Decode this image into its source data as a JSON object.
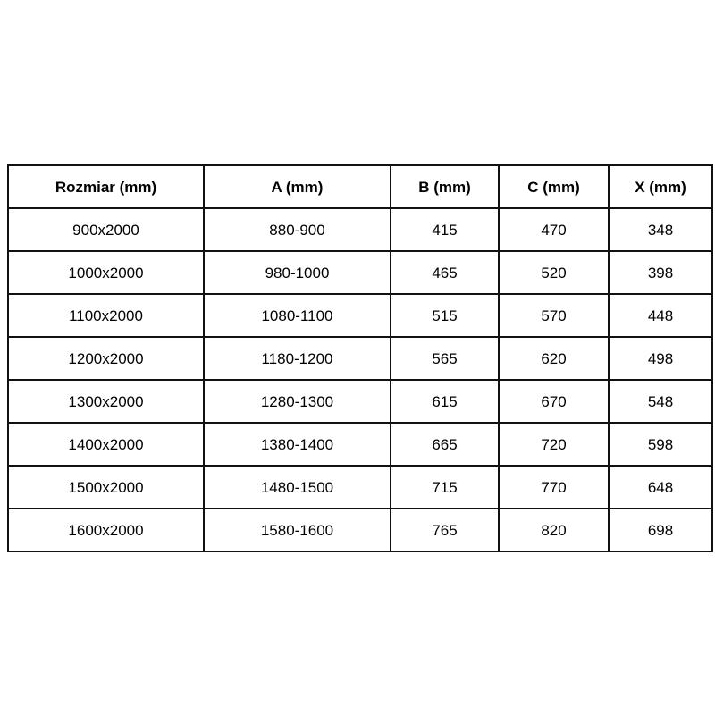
{
  "chart_data": {
    "type": "table",
    "title": "",
    "columns": [
      "Rozmiar (mm)",
      "A (mm)",
      "B (mm)",
      "C (mm)",
      "X (mm)"
    ],
    "rows": [
      [
        "900x2000",
        "880-900",
        "415",
        "470",
        "348"
      ],
      [
        "1000x2000",
        "980-1000",
        "465",
        "520",
        "398"
      ],
      [
        "1100x2000",
        "1080-1100",
        "515",
        "570",
        "448"
      ],
      [
        "1200x2000",
        "1180-1200",
        "565",
        "620",
        "498"
      ],
      [
        "1300x2000",
        "1280-1300",
        "615",
        "670",
        "548"
      ],
      [
        "1400x2000",
        "1380-1400",
        "665",
        "720",
        "598"
      ],
      [
        "1500x2000",
        "1480-1500",
        "715",
        "770",
        "648"
      ],
      [
        "1600x2000",
        "1580-1600",
        "765",
        "820",
        "698"
      ]
    ],
    "colors": {
      "border": "#111111",
      "text": "#000000",
      "background": "#ffffff"
    }
  }
}
